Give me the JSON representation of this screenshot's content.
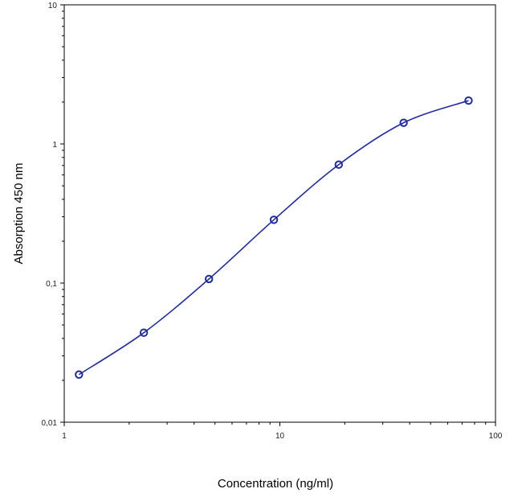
{
  "chart_data": {
    "type": "scatter",
    "xlabel": "Concentration (ng/ml)",
    "ylabel": "Absorption 450 nm",
    "xscale": "log",
    "yscale": "log",
    "xlim": [
      1,
      100
    ],
    "ylim": [
      0.01,
      10
    ],
    "x_tick_labels": [
      "1",
      "10",
      "100"
    ],
    "y_tick_labels": [
      "0,01",
      "0,1",
      "1",
      "10"
    ],
    "grid": false,
    "legend": "none",
    "series": [
      {
        "x": [
          1.17,
          2.34,
          4.69,
          9.38,
          18.75,
          37.5,
          75
        ],
        "y": [
          0.022,
          0.044,
          0.107,
          0.285,
          0.71,
          1.42,
          2.05
        ]
      }
    ],
    "fit_curve": true,
    "colors": {
      "series": "#1f2a9e",
      "axis": "#000000"
    }
  }
}
